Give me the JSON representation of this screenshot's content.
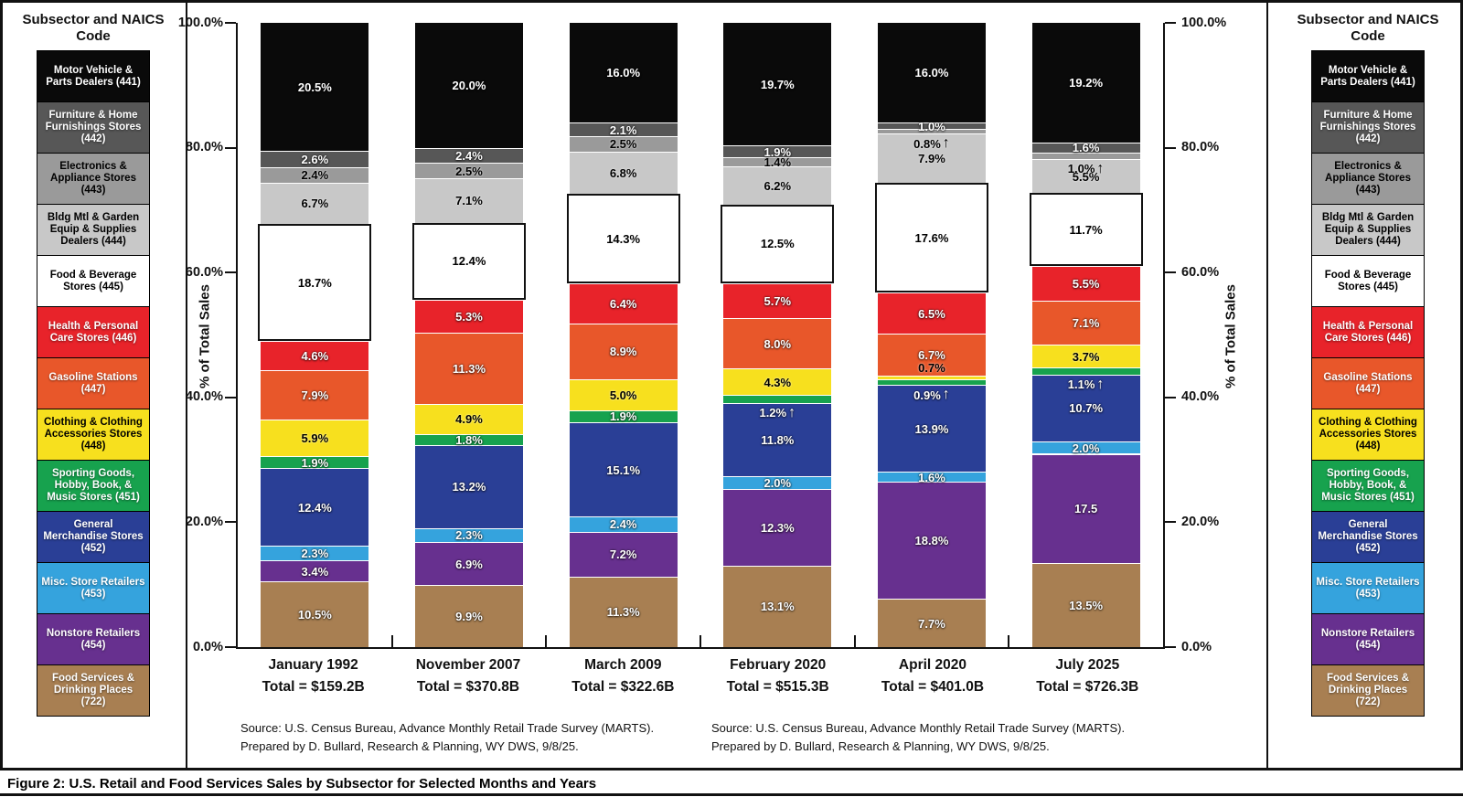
{
  "figure": {
    "caption": "Figure 2: U.S. Retail and Food Services Sales by Subsector for Selected Months and Years",
    "source_line1": "Source: U.S. Census Bureau, Advance Monthly Retail Trade Survey (MARTS).",
    "source_line2": "Prepared by D. Bullard, Research & Planning, WY DWS, 9/8/25."
  },
  "legend": {
    "title": "Subsector and NAICS Code",
    "items": [
      {
        "naics": "441",
        "label": "Motor Vehicle & Parts Dealers (441)",
        "color": "#0a0a0a",
        "text_color": "#ffffff"
      },
      {
        "naics": "442",
        "label": "Furniture & Home Furnishings Stores (442)",
        "color": "#575757",
        "text_color": "#ffffff"
      },
      {
        "naics": "443",
        "label": "Electronics & Appliance Stores (443)",
        "color": "#9a9a9a",
        "text_color": "#000000"
      },
      {
        "naics": "444",
        "label": "Bldg Mtl & Garden Equip & Supplies Dealers (444)",
        "color": "#c8c8c8",
        "text_color": "#000000"
      },
      {
        "naics": "445",
        "label": "Food & Beverage Stores (445)",
        "color": "#ffffff",
        "text_color": "#000000"
      },
      {
        "naics": "446",
        "label": "Health & Personal Care Stores (446)",
        "color": "#e8232a",
        "text_color": "#ffffff"
      },
      {
        "naics": "447",
        "label": "Gasoline Stations (447)",
        "color": "#e8572a",
        "text_color": "#ffffff"
      },
      {
        "naics": "448",
        "label": "Clothing & Clothing Accessories Stores (448)",
        "color": "#f7e01e",
        "text_color": "#000000"
      },
      {
        "naics": "451",
        "label": "Sporting Goods, Hobby, Book, & Music Stores (451)",
        "color": "#17a24e",
        "text_color": "#ffffff"
      },
      {
        "naics": "452",
        "label": "General Merchandise Stores (452)",
        "color": "#2a3f96",
        "text_color": "#ffffff"
      },
      {
        "naics": "453",
        "label": "Misc. Store Retailers (453)",
        "color": "#35a3dd",
        "text_color": "#ffffff"
      },
      {
        "naics": "454",
        "label": "Nonstore Retailers (454)",
        "color": "#67308f",
        "text_color": "#ffffff"
      },
      {
        "naics": "722",
        "label": "Food Services & Drinking Places (722)",
        "color": "#a87f52",
        "text_color": "#ffffff"
      }
    ]
  },
  "chart_data": {
    "type": "bar",
    "stacked": true,
    "ylabel": "% of Total Sales",
    "ylim": [
      0,
      100
    ],
    "yticks": [
      "0.0%",
      "20.0%",
      "40.0%",
      "60.0%",
      "80.0%",
      "100.0%"
    ],
    "grid": false,
    "legend_position": "left-and-right",
    "stack_order_bottom_to_top": [
      "722",
      "454",
      "453",
      "452",
      "451",
      "448",
      "447",
      "446",
      "445",
      "444",
      "443",
      "442",
      "441"
    ],
    "bars": [
      {
        "label": "January 1992",
        "total": "Total = $159.2B",
        "segments": [
          {
            "naics": "722",
            "value": 10.5,
            "label": "10.5%"
          },
          {
            "naics": "454",
            "value": 3.4,
            "label": "3.4%"
          },
          {
            "naics": "453",
            "value": 2.3,
            "label": "2.3%"
          },
          {
            "naics": "452",
            "value": 12.4,
            "label": "12.4%"
          },
          {
            "naics": "451",
            "value": 1.9,
            "label": "1.9%"
          },
          {
            "naics": "448",
            "value": 5.9,
            "label": "5.9%"
          },
          {
            "naics": "447",
            "value": 7.9,
            "label": "7.9%"
          },
          {
            "naics": "446",
            "value": 4.6,
            "label": "4.6%"
          },
          {
            "naics": "445",
            "value": 18.7,
            "label": "18.7%"
          },
          {
            "naics": "444",
            "value": 6.7,
            "label": "6.7%"
          },
          {
            "naics": "443",
            "value": 2.4,
            "label": "2.4%"
          },
          {
            "naics": "442",
            "value": 2.6,
            "label": "2.6%"
          },
          {
            "naics": "441",
            "value": 20.5,
            "label": "20.5%"
          }
        ]
      },
      {
        "label": "November 2007",
        "total": "Total = $370.8B",
        "segments": [
          {
            "naics": "722",
            "value": 9.9,
            "label": "9.9%"
          },
          {
            "naics": "454",
            "value": 6.9,
            "label": "6.9%"
          },
          {
            "naics": "453",
            "value": 2.3,
            "label": "2.3%"
          },
          {
            "naics": "452",
            "value": 13.2,
            "label": "13.2%"
          },
          {
            "naics": "451",
            "value": 1.8,
            "label": "1.8%"
          },
          {
            "naics": "448",
            "value": 4.9,
            "label": "4.9%"
          },
          {
            "naics": "447",
            "value": 11.3,
            "label": "11.3%"
          },
          {
            "naics": "446",
            "value": 5.3,
            "label": "5.3%"
          },
          {
            "naics": "445",
            "value": 12.4,
            "label": "12.4%"
          },
          {
            "naics": "444",
            "value": 7.1,
            "label": "7.1%"
          },
          {
            "naics": "443",
            "value": 2.5,
            "label": "2.5%"
          },
          {
            "naics": "442",
            "value": 2.4,
            "label": "2.4%"
          },
          {
            "naics": "441",
            "value": 20.0,
            "label": "20.0%"
          }
        ]
      },
      {
        "label": "March 2009",
        "total": "Total = $322.6B",
        "segments": [
          {
            "naics": "722",
            "value": 11.3,
            "label": "11.3%"
          },
          {
            "naics": "454",
            "value": 7.2,
            "label": "7.2%"
          },
          {
            "naics": "453",
            "value": 2.4,
            "label": "2.4%"
          },
          {
            "naics": "452",
            "value": 15.1,
            "label": "15.1%"
          },
          {
            "naics": "451",
            "value": 1.9,
            "label": "1.9%"
          },
          {
            "naics": "448",
            "value": 5.0,
            "label": "5.0%"
          },
          {
            "naics": "447",
            "value": 8.9,
            "label": "8.9%"
          },
          {
            "naics": "446",
            "value": 6.4,
            "label": "6.4%"
          },
          {
            "naics": "445",
            "value": 14.3,
            "label": "14.3%"
          },
          {
            "naics": "444",
            "value": 6.8,
            "label": "6.8%"
          },
          {
            "naics": "443",
            "value": 2.5,
            "label": "2.5%"
          },
          {
            "naics": "442",
            "value": 2.1,
            "label": "2.1%"
          },
          {
            "naics": "441",
            "value": 16.0,
            "label": "16.0%"
          }
        ]
      },
      {
        "label": "February 2020",
        "total": "Total = $515.3B",
        "segments": [
          {
            "naics": "722",
            "value": 13.1,
            "label": "13.1%"
          },
          {
            "naics": "454",
            "value": 12.3,
            "label": "12.3%"
          },
          {
            "naics": "453",
            "value": 2.0,
            "label": "2.0%"
          },
          {
            "naics": "452",
            "value": 11.8,
            "label": "11.8%"
          },
          {
            "naics": "451",
            "value": 1.2,
            "label": "1.2%",
            "placement": "below",
            "arrow": true
          },
          {
            "naics": "448",
            "value": 4.3,
            "label": "4.3%"
          },
          {
            "naics": "447",
            "value": 8.0,
            "label": "8.0%"
          },
          {
            "naics": "446",
            "value": 5.7,
            "label": "5.7%"
          },
          {
            "naics": "445",
            "value": 12.5,
            "label": "12.5%"
          },
          {
            "naics": "444",
            "value": 6.2,
            "label": "6.2%"
          },
          {
            "naics": "443",
            "value": 1.4,
            "label": "1.4%"
          },
          {
            "naics": "442",
            "value": 1.9,
            "label": "1.9%"
          },
          {
            "naics": "441",
            "value": 19.7,
            "label": "19.7%"
          }
        ]
      },
      {
        "label": "April 2020",
        "total": "Total = $401.0B",
        "segments": [
          {
            "naics": "722",
            "value": 7.7,
            "label": "7.7%"
          },
          {
            "naics": "454",
            "value": 18.8,
            "label": "18.8%"
          },
          {
            "naics": "453",
            "value": 1.6,
            "label": "1.6%"
          },
          {
            "naics": "452",
            "value": 13.9,
            "label": "13.9%"
          },
          {
            "naics": "451",
            "value": 0.9,
            "label": "0.9%",
            "placement": "below",
            "arrow": true
          },
          {
            "naics": "448",
            "value": 0.7,
            "label": "0.7%",
            "placement": "above"
          },
          {
            "naics": "447",
            "value": 6.7,
            "label": "6.7%"
          },
          {
            "naics": "446",
            "value": 6.5,
            "label": "6.5%"
          },
          {
            "naics": "445",
            "value": 17.6,
            "label": "17.6%"
          },
          {
            "naics": "444",
            "value": 7.9,
            "label": "7.9%"
          },
          {
            "naics": "443",
            "value": 0.8,
            "label": "0.8%",
            "placement": "below",
            "arrow": true
          },
          {
            "naics": "442",
            "value": 1.0,
            "label": "1.0%"
          },
          {
            "naics": "441",
            "value": 16.0,
            "label": "16.0%"
          }
        ]
      },
      {
        "label": "July 2025",
        "total": "Total = $726.3B",
        "segments": [
          {
            "naics": "722",
            "value": 13.5,
            "label": "13.5%"
          },
          {
            "naics": "454",
            "value": 17.5,
            "label": "17.5"
          },
          {
            "naics": "453",
            "value": 2.0,
            "label": "2.0%"
          },
          {
            "naics": "452",
            "value": 10.7,
            "label": "10.7%"
          },
          {
            "naics": "451",
            "value": 1.1,
            "label": "1.1%",
            "placement": "below",
            "arrow": true
          },
          {
            "naics": "448",
            "value": 3.7,
            "label": "3.7%"
          },
          {
            "naics": "447",
            "value": 7.1,
            "label": "7.1%"
          },
          {
            "naics": "446",
            "value": 5.5,
            "label": "5.5%"
          },
          {
            "naics": "445",
            "value": 11.7,
            "label": "11.7%"
          },
          {
            "naics": "444",
            "value": 5.5,
            "label": "5.5%"
          },
          {
            "naics": "443",
            "value": 1.0,
            "label": "1.0%",
            "placement": "below",
            "arrow": true
          },
          {
            "naics": "442",
            "value": 1.6,
            "label": "1.6%"
          },
          {
            "naics": "441",
            "value": 19.2,
            "label": "19.2%"
          }
        ]
      }
    ]
  }
}
